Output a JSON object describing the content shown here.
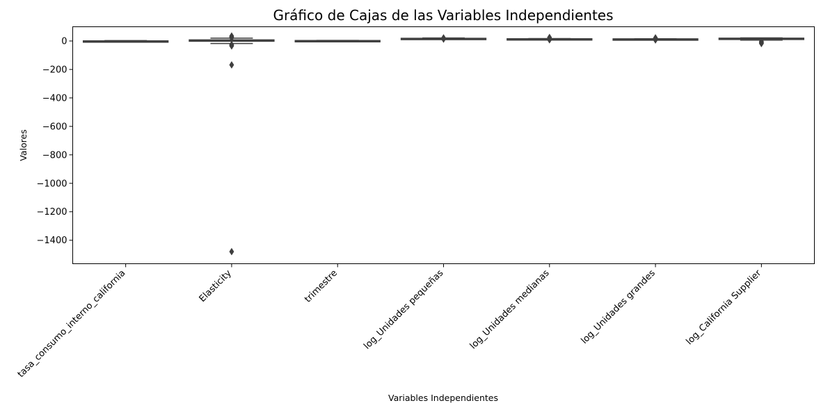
{
  "chart_data": {
    "type": "box",
    "title": "Gráfico de Cajas de las Variables Independientes",
    "xlabel": "Variables Independientes",
    "ylabel": "Valores",
    "ylim": [
      -1565,
      100
    ],
    "yticks": [
      0,
      -200,
      -400,
      -600,
      -800,
      -1000,
      -1200,
      -1400
    ],
    "ytick_labels": [
      "0",
      "−200",
      "−400",
      "−600",
      "−800",
      "−1000",
      "−1200",
      "−1400"
    ],
    "grid": false,
    "colors": {
      "box_fill": "#4a4a4a",
      "line": "#3f3f3f",
      "outlier": "#3f3f3f"
    },
    "categories": [
      "tasa_consumo_interno_california",
      "Elasticity",
      "trimestre",
      "log_Unidades pequeñas",
      "log_Unidades medianas",
      "log_Unidades grandes",
      "log_California Supplier"
    ],
    "boxes": [
      {
        "q1": -1,
        "median": 0,
        "q3": 1,
        "whislo": -3,
        "whishi": 3,
        "outliers": []
      },
      {
        "q1": -2,
        "median": 0,
        "q3": 8,
        "whislo": -18,
        "whishi": 20,
        "outliers": [
          35,
          30,
          25,
          22,
          -25,
          -30,
          -35,
          -168,
          -1480
        ]
      },
      {
        "q1": 1.5,
        "median": 2.5,
        "q3": 3.5,
        "whislo": 1,
        "whishi": 4,
        "outliers": []
      },
      {
        "q1": 17,
        "median": 18,
        "q3": 19,
        "whislo": 16,
        "whishi": 21,
        "outliers": [
          13,
          22
        ]
      },
      {
        "q1": 14,
        "median": 15,
        "q3": 16,
        "whislo": 12,
        "whishi": 17,
        "outliers": [
          8,
          20,
          25
        ]
      },
      {
        "q1": 13,
        "median": 14,
        "q3": 15,
        "whislo": 11,
        "whishi": 16,
        "outliers": [
          7,
          18,
          22
        ]
      },
      {
        "q1": 14,
        "median": 18,
        "q3": 20,
        "whislo": 6,
        "whishi": 22,
        "outliers": [
          -3,
          -8,
          -12,
          -15,
          -18
        ]
      }
    ]
  }
}
